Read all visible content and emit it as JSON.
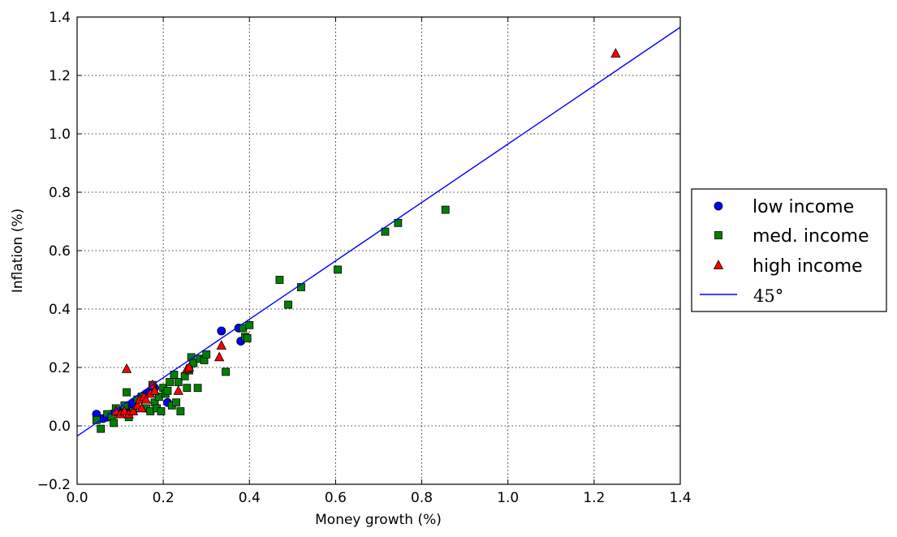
{
  "chart_data": {
    "type": "scatter",
    "xlabel": "Money growth (%)",
    "ylabel": "Inflation (%)",
    "xlim": [
      0.0,
      1.4
    ],
    "ylim": [
      -0.2,
      1.4
    ],
    "xticks": [
      "0.0",
      "0.2",
      "0.4",
      "0.6",
      "0.8",
      "1.0",
      "1.2",
      "1.4"
    ],
    "yticks": [
      "−0.2",
      "0.0",
      "0.2",
      "0.4",
      "0.6",
      "0.8",
      "1.0",
      "1.2",
      "1.4"
    ],
    "grid": true,
    "legend_position": "right",
    "series": [
      {
        "name": "low income",
        "marker": "circle",
        "color": "#0000ff",
        "points": [
          [
            0.045,
            0.04
          ],
          [
            0.06,
            0.025
          ],
          [
            0.07,
            0.03
          ],
          [
            0.08,
            0.04
          ],
          [
            0.09,
            0.05
          ],
          [
            0.1,
            0.05
          ],
          [
            0.11,
            0.06
          ],
          [
            0.12,
            0.07
          ],
          [
            0.13,
            0.08
          ],
          [
            0.14,
            0.09
          ],
          [
            0.15,
            0.1
          ],
          [
            0.16,
            0.11
          ],
          [
            0.17,
            0.12
          ],
          [
            0.18,
            0.13
          ],
          [
            0.21,
            0.08
          ],
          [
            0.335,
            0.325
          ],
          [
            0.375,
            0.335
          ],
          [
            0.38,
            0.29
          ]
        ]
      },
      {
        "name": "med. income",
        "marker": "square",
        "color": "#008000",
        "points": [
          [
            0.045,
            0.02
          ],
          [
            0.055,
            -0.01
          ],
          [
            0.07,
            0.04
          ],
          [
            0.08,
            0.03
          ],
          [
            0.085,
            0.01
          ],
          [
            0.09,
            0.06
          ],
          [
            0.1,
            0.04
          ],
          [
            0.11,
            0.07
          ],
          [
            0.115,
            0.115
          ],
          [
            0.12,
            0.03
          ],
          [
            0.13,
            0.05
          ],
          [
            0.14,
            0.09
          ],
          [
            0.15,
            0.1
          ],
          [
            0.16,
            0.06
          ],
          [
            0.17,
            0.05
          ],
          [
            0.175,
            0.14
          ],
          [
            0.18,
            0.08
          ],
          [
            0.185,
            0.06
          ],
          [
            0.19,
            0.1
          ],
          [
            0.195,
            0.05
          ],
          [
            0.2,
            0.13
          ],
          [
            0.205,
            0.11
          ],
          [
            0.21,
            0.12
          ],
          [
            0.215,
            0.15
          ],
          [
            0.22,
            0.07
          ],
          [
            0.225,
            0.175
          ],
          [
            0.23,
            0.08
          ],
          [
            0.235,
            0.15
          ],
          [
            0.24,
            0.05
          ],
          [
            0.25,
            0.17
          ],
          [
            0.255,
            0.13
          ],
          [
            0.26,
            0.19
          ],
          [
            0.265,
            0.235
          ],
          [
            0.27,
            0.215
          ],
          [
            0.28,
            0.13
          ],
          [
            0.285,
            0.23
          ],
          [
            0.295,
            0.225
          ],
          [
            0.3,
            0.245
          ],
          [
            0.345,
            0.185
          ],
          [
            0.385,
            0.335
          ],
          [
            0.39,
            0.305
          ],
          [
            0.395,
            0.3
          ],
          [
            0.4,
            0.345
          ],
          [
            0.47,
            0.5
          ],
          [
            0.49,
            0.415
          ],
          [
            0.52,
            0.475
          ],
          [
            0.605,
            0.535
          ],
          [
            0.715,
            0.665
          ],
          [
            0.745,
            0.695
          ],
          [
            0.855,
            0.74
          ]
        ]
      },
      {
        "name": "high income",
        "marker": "triangle",
        "color": "#ff0000",
        "points": [
          [
            0.09,
            0.05
          ],
          [
            0.1,
            0.04
          ],
          [
            0.11,
            0.05
          ],
          [
            0.115,
            0.195
          ],
          [
            0.12,
            0.04
          ],
          [
            0.13,
            0.05
          ],
          [
            0.14,
            0.07
          ],
          [
            0.145,
            0.09
          ],
          [
            0.15,
            0.06
          ],
          [
            0.155,
            0.1
          ],
          [
            0.16,
            0.09
          ],
          [
            0.17,
            0.11
          ],
          [
            0.175,
            0.14
          ],
          [
            0.18,
            0.12
          ],
          [
            0.235,
            0.12
          ],
          [
            0.255,
            0.195
          ],
          [
            0.26,
            0.2
          ],
          [
            0.33,
            0.235
          ],
          [
            0.335,
            0.275
          ],
          [
            1.25,
            1.275
          ]
        ]
      },
      {
        "name": "45°",
        "type": "line",
        "color": "#0000ff",
        "x": [
          0.0,
          1.4
        ],
        "y": [
          -0.035,
          1.365
        ]
      }
    ]
  }
}
